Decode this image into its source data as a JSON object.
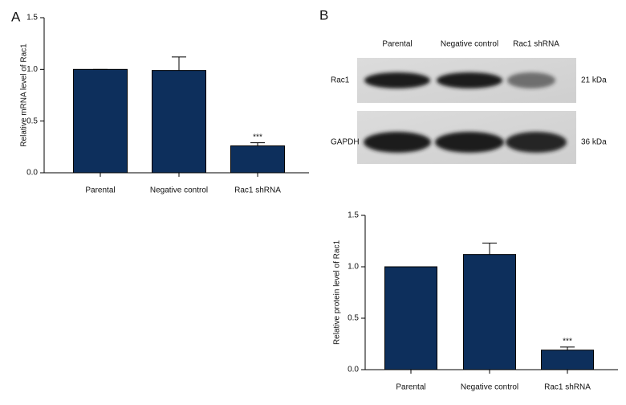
{
  "panel_labels": [
    "A",
    "B"
  ],
  "blot": {
    "lanes": [
      "Parental",
      "Negative control",
      "Rac1 shRNA"
    ],
    "rows": [
      {
        "label": "Rac1",
        "size": "21 kDa"
      },
      {
        "label": "GAPDH",
        "size": "36 kDa"
      }
    ]
  },
  "chart_data": [
    {
      "type": "bar",
      "y_label": "Relative mRNA level of Rac1",
      "categories": [
        "Parental",
        "Negative control",
        "Rac1 shRNA"
      ],
      "values": [
        1.0,
        0.99,
        0.26
      ],
      "errors": [
        0,
        0.13,
        0.03
      ],
      "significance": [
        null,
        null,
        "***"
      ],
      "color": "#0d2f5c",
      "ylim": [
        0,
        1.5
      ],
      "yticks": [
        {
          "value": 0,
          "label": "0.0"
        },
        0.5,
        {
          "value": 1,
          "label": "1.0"
        },
        1.5
      ]
    },
    {
      "type": "bar",
      "y_label": "Relative protein level of Rac1",
      "categories": [
        "Parental",
        "Negative control",
        "Rac1 shRNA"
      ],
      "values": [
        1.0,
        1.12,
        0.19
      ],
      "errors": [
        0,
        0.11,
        0.03
      ],
      "significance": [
        null,
        null,
        "***"
      ],
      "color": "#0d2f5c",
      "ylim": [
        0,
        1.5
      ],
      "yticks": [
        {
          "value": 0,
          "label": "0.0"
        },
        0.5,
        {
          "value": 1,
          "label": "1.0"
        },
        1.5
      ]
    }
  ]
}
